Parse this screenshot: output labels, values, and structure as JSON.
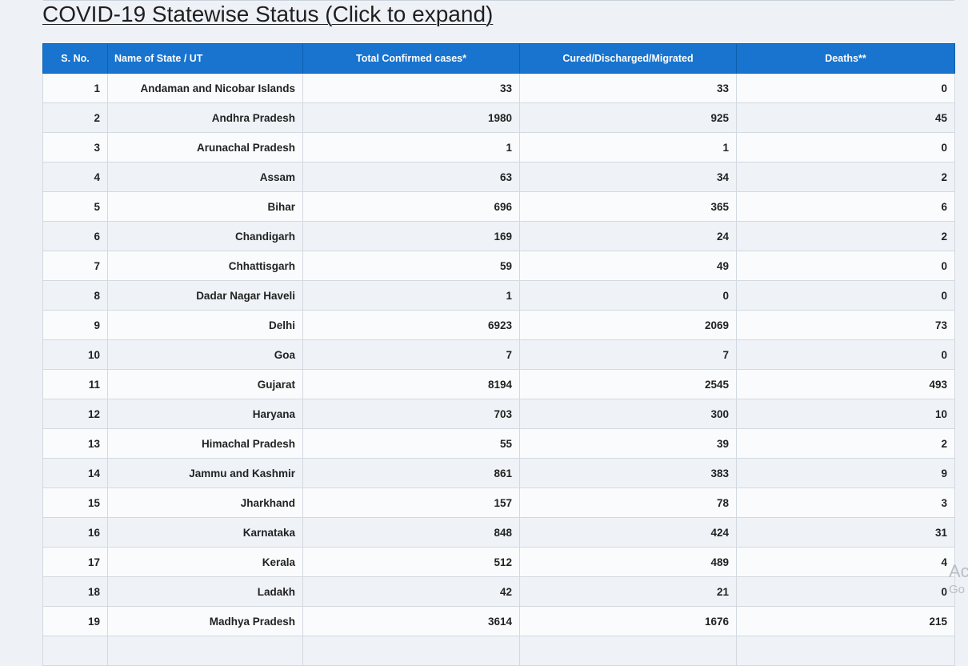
{
  "page": {
    "title": "COVID-19 Statewise Status (Click to expand)"
  },
  "table": {
    "headers": {
      "sno": "S. No.",
      "name": "Name of State / UT",
      "confirmed": "Total Confirmed cases*",
      "cured": "Cured/Discharged/Migrated",
      "deaths": "Deaths**"
    },
    "rows": [
      {
        "sno": "1",
        "name": "Andaman and Nicobar Islands",
        "confirmed": "33",
        "cured": "33",
        "deaths": "0"
      },
      {
        "sno": "2",
        "name": "Andhra Pradesh",
        "confirmed": "1980",
        "cured": "925",
        "deaths": "45"
      },
      {
        "sno": "3",
        "name": "Arunachal Pradesh",
        "confirmed": "1",
        "cured": "1",
        "deaths": "0"
      },
      {
        "sno": "4",
        "name": "Assam",
        "confirmed": "63",
        "cured": "34",
        "deaths": "2"
      },
      {
        "sno": "5",
        "name": "Bihar",
        "confirmed": "696",
        "cured": "365",
        "deaths": "6"
      },
      {
        "sno": "6",
        "name": "Chandigarh",
        "confirmed": "169",
        "cured": "24",
        "deaths": "2"
      },
      {
        "sno": "7",
        "name": "Chhattisgarh",
        "confirmed": "59",
        "cured": "49",
        "deaths": "0"
      },
      {
        "sno": "8",
        "name": "Dadar Nagar Haveli",
        "confirmed": "1",
        "cured": "0",
        "deaths": "0"
      },
      {
        "sno": "9",
        "name": "Delhi",
        "confirmed": "6923",
        "cured": "2069",
        "deaths": "73"
      },
      {
        "sno": "10",
        "name": "Goa",
        "confirmed": "7",
        "cured": "7",
        "deaths": "0"
      },
      {
        "sno": "11",
        "name": "Gujarat",
        "confirmed": "8194",
        "cured": "2545",
        "deaths": "493"
      },
      {
        "sno": "12",
        "name": "Haryana",
        "confirmed": "703",
        "cured": "300",
        "deaths": "10"
      },
      {
        "sno": "13",
        "name": "Himachal Pradesh",
        "confirmed": "55",
        "cured": "39",
        "deaths": "2"
      },
      {
        "sno": "14",
        "name": "Jammu and Kashmir",
        "confirmed": "861",
        "cured": "383",
        "deaths": "9"
      },
      {
        "sno": "15",
        "name": "Jharkhand",
        "confirmed": "157",
        "cured": "78",
        "deaths": "3"
      },
      {
        "sno": "16",
        "name": "Karnataka",
        "confirmed": "848",
        "cured": "424",
        "deaths": "31"
      },
      {
        "sno": "17",
        "name": "Kerala",
        "confirmed": "512",
        "cured": "489",
        "deaths": "4"
      },
      {
        "sno": "18",
        "name": "Ladakh",
        "confirmed": "42",
        "cured": "21",
        "deaths": "0"
      },
      {
        "sno": "19",
        "name": "Madhya Pradesh",
        "confirmed": "3614",
        "cured": "1676",
        "deaths": "215"
      },
      {
        "sno": "",
        "name": "",
        "confirmed": "",
        "cured": "",
        "deaths": ""
      }
    ]
  },
  "watermark": {
    "line1": "Ac",
    "line2": "Go"
  },
  "colors": {
    "header_bg": "#1874cf",
    "header_text": "#ffffff",
    "row_odd": "#fafbfc",
    "row_even": "#eff3f8",
    "page_bg": "#eef2f7"
  }
}
